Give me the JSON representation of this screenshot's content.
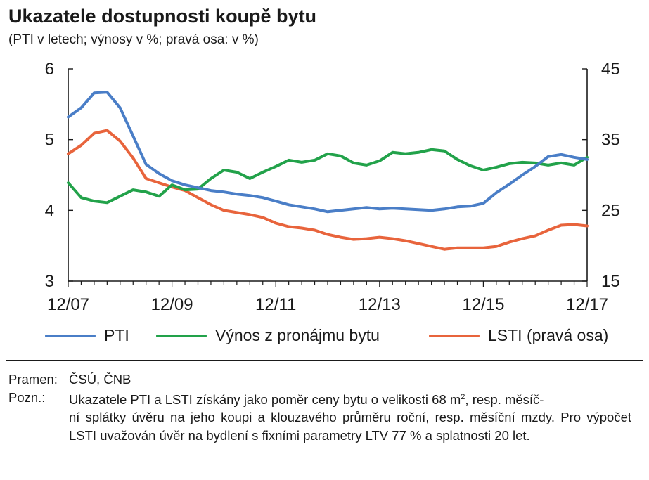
{
  "header": {
    "title": "Ukazatele dostupnosti koupě bytu",
    "subtitle": "(PTI v letech; výnosy v %; pravá osa: v %)"
  },
  "colors": {
    "pti": "#4a7ec7",
    "vynos": "#22a24a",
    "lsti": "#e8643c",
    "axis": "#1a1a1a"
  },
  "chart_data": {
    "type": "line",
    "x_labels": [
      "12/07",
      "12/09",
      "12/11",
      "12/13",
      "12/15",
      "12/17"
    ],
    "x_label_index": [
      0,
      8,
      16,
      24,
      32,
      40
    ],
    "x_range": [
      0,
      40
    ],
    "left_axis": {
      "ylim": [
        3,
        6
      ],
      "ticks": [
        "3",
        "4",
        "5",
        "6"
      ]
    },
    "right_axis": {
      "ylim": [
        15,
        45
      ],
      "ticks": [
        "15",
        "25",
        "35",
        "45"
      ]
    },
    "legend_position": "bottom",
    "grid": false,
    "series": [
      {
        "name": "PTI",
        "axis": "left",
        "color_key": "pti",
        "values": [
          5.32,
          5.45,
          5.66,
          5.67,
          5.45,
          5.05,
          4.65,
          4.52,
          4.42,
          4.36,
          4.32,
          4.28,
          4.26,
          4.23,
          4.21,
          4.18,
          4.13,
          4.08,
          4.05,
          4.02,
          3.98,
          4.0,
          4.02,
          4.04,
          4.02,
          4.03,
          4.02,
          4.01,
          4.0,
          4.02,
          4.05,
          4.06,
          4.1,
          4.25,
          4.37,
          4.5,
          4.62,
          4.76,
          4.79,
          4.75,
          4.72
        ]
      },
      {
        "name": "Výnos z pronájmu bytu",
        "axis": "left",
        "color_key": "vynos",
        "values": [
          4.39,
          4.18,
          4.13,
          4.11,
          4.2,
          4.29,
          4.26,
          4.2,
          4.36,
          4.29,
          4.3,
          4.45,
          4.57,
          4.54,
          4.45,
          4.54,
          4.62,
          4.71,
          4.68,
          4.71,
          4.8,
          4.77,
          4.67,
          4.64,
          4.7,
          4.82,
          4.8,
          4.82,
          4.86,
          4.84,
          4.72,
          4.63,
          4.57,
          4.61,
          4.66,
          4.68,
          4.67,
          4.64,
          4.67,
          4.64,
          4.75
        ]
      },
      {
        "name": "LSTI (pravá osa)",
        "axis": "right",
        "color_key": "lsti",
        "values": [
          33.0,
          34.2,
          35.9,
          36.3,
          34.8,
          32.4,
          29.5,
          28.9,
          28.3,
          27.8,
          26.8,
          25.8,
          25.0,
          24.7,
          24.4,
          24.0,
          23.2,
          22.7,
          22.5,
          22.2,
          21.6,
          21.2,
          20.9,
          21.0,
          21.2,
          21.0,
          20.7,
          20.3,
          19.9,
          19.5,
          19.7,
          19.7,
          19.7,
          19.9,
          20.5,
          21.0,
          21.4,
          22.2,
          22.9,
          23.0,
          22.8
        ]
      }
    ]
  },
  "notes": {
    "source_label": "Pramen:",
    "source_text": "ČSÚ, ČNB",
    "note_label": "Pozn.:",
    "note_line1_a": "Ukazatele PTI a LSTI získány jako poměr ceny bytu o velikosti 68 m",
    "note_line1_sup": "2",
    "note_line1_b": ", resp. měsíč-",
    "note_rest": "ní splátky úvěru na jeho koupi a klouzavého průměru roční, resp. měsíční mzdy. Pro výpočet LSTI uvažován úvěr na bydlení s fixními parametry LTV 77 % a splatnosti 20 let."
  }
}
